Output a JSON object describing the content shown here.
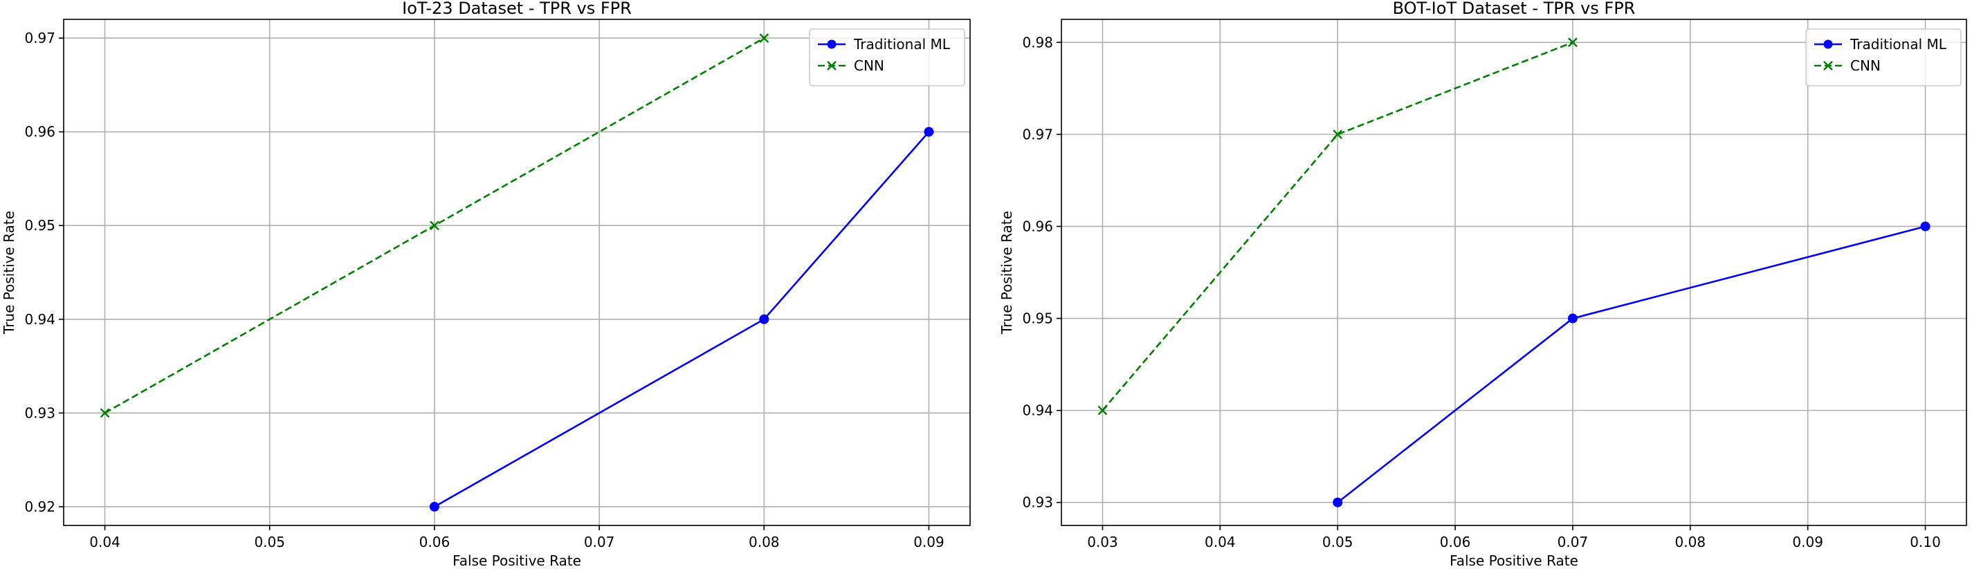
{
  "chart_data": [
    {
      "type": "line",
      "title": "IoT-23 Dataset - TPR vs FPR",
      "xlabel": "False Positive Rate",
      "ylabel": "True Positive Rate",
      "xlim": [
        0.0375,
        0.0925
      ],
      "ylim": [
        0.918,
        0.972
      ],
      "xticks": [
        "0.04",
        "0.05",
        "0.06",
        "0.07",
        "0.08",
        "0.09"
      ],
      "yticks": [
        "0.92",
        "0.93",
        "0.94",
        "0.95",
        "0.96",
        "0.97"
      ],
      "grid": true,
      "legend_position": "top-right",
      "series": [
        {
          "name": "Traditional ML",
          "color": "#0000ff",
          "line_style": "solid",
          "marker": "circle",
          "x": [
            0.06,
            0.08,
            0.09
          ],
          "y": [
            0.92,
            0.94,
            0.96
          ]
        },
        {
          "name": "CNN",
          "color": "#008000",
          "line_style": "dashed",
          "marker": "x",
          "x": [
            0.04,
            0.06,
            0.08
          ],
          "y": [
            0.93,
            0.95,
            0.97
          ]
        }
      ]
    },
    {
      "type": "line",
      "title": "BOT-IoT Dataset - TPR vs FPR",
      "xlabel": "False Positive Rate",
      "ylabel": "True Positive Rate",
      "xlim": [
        0.0265,
        0.1035
      ],
      "ylim": [
        0.9275,
        0.9825
      ],
      "xticks": [
        "0.03",
        "0.04",
        "0.05",
        "0.06",
        "0.07",
        "0.08",
        "0.09",
        "0.10"
      ],
      "yticks": [
        "0.93",
        "0.94",
        "0.95",
        "0.96",
        "0.97",
        "0.98"
      ],
      "grid": true,
      "legend_position": "top-right",
      "series": [
        {
          "name": "Traditional ML",
          "color": "#0000ff",
          "line_style": "solid",
          "marker": "circle",
          "x": [
            0.05,
            0.07,
            0.1
          ],
          "y": [
            0.93,
            0.95,
            0.96
          ]
        },
        {
          "name": "CNN",
          "color": "#008000",
          "line_style": "dashed",
          "marker": "x",
          "x": [
            0.03,
            0.05,
            0.07
          ],
          "y": [
            0.94,
            0.97,
            0.98
          ]
        }
      ]
    }
  ]
}
